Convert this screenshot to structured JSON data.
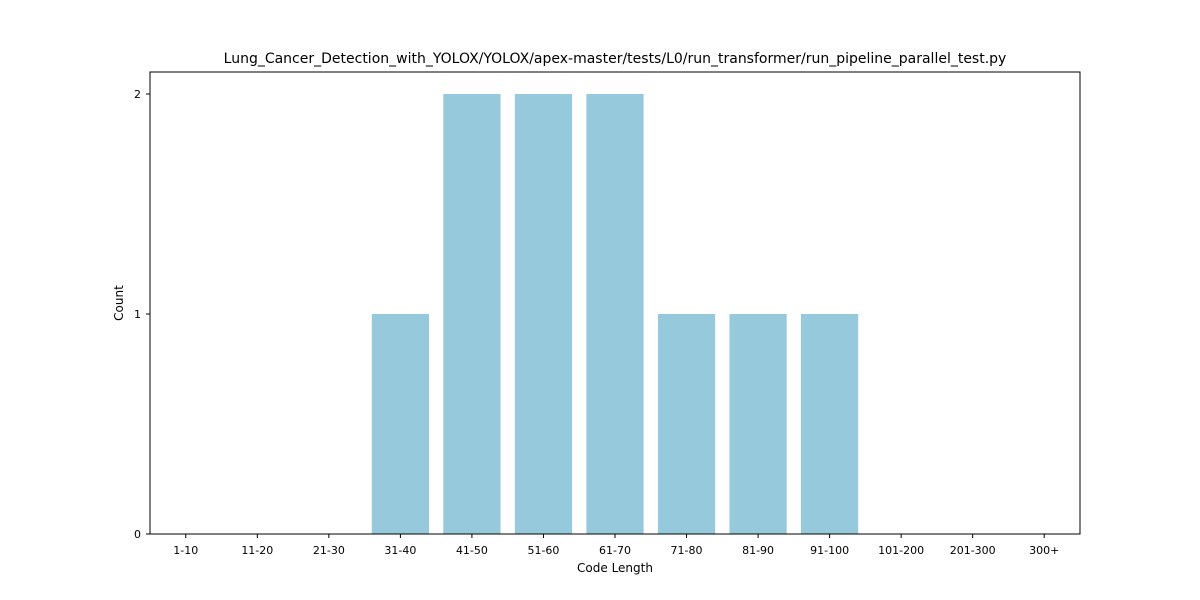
{
  "chart_data": {
    "type": "bar",
    "title": "Lung_Cancer_Detection_with_YOLOX/YOLOX/apex-master/tests/L0/run_transformer/run_pipeline_parallel_test.py",
    "xlabel": "Code Length",
    "ylabel": "Count",
    "categories": [
      "1-10",
      "11-20",
      "21-30",
      "31-40",
      "41-50",
      "51-60",
      "61-70",
      "71-80",
      "81-90",
      "91-100",
      "101-200",
      "201-300",
      "300+"
    ],
    "values": [
      0,
      0,
      0,
      1,
      2,
      2,
      2,
      1,
      1,
      1,
      0,
      0,
      0
    ],
    "ylim": [
      0,
      2.1
    ],
    "yticks": [
      0,
      1,
      2
    ],
    "bar_color": "#96c9dc",
    "grid": false,
    "legend": "none"
  }
}
